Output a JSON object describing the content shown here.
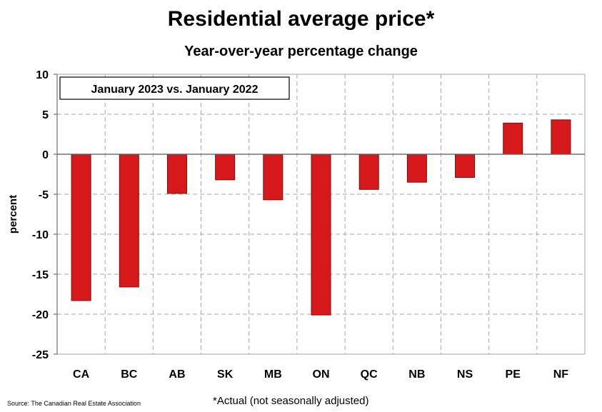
{
  "chart_data": {
    "type": "bar",
    "title": "Residential average price*",
    "subtitle": "Year-over-year percentage change",
    "annotation": "January 2023 vs. January 2022",
    "categories": [
      "CA",
      "BC",
      "AB",
      "SK",
      "MB",
      "ON",
      "QC",
      "NB",
      "NS",
      "PE",
      "NF"
    ],
    "series": [
      {
        "name": "Year-over-year percentage change",
        "values": [
          -18.3,
          -16.6,
          -4.9,
          -3.2,
          -5.7,
          -20.1,
          -4.4,
          -3.5,
          -2.9,
          3.9,
          4.3
        ]
      }
    ],
    "xlabel": "",
    "ylabel": "percent",
    "ylim": [
      -25,
      10
    ],
    "yticks": [
      10,
      5,
      0,
      -5,
      -10,
      -15,
      -20,
      -25
    ],
    "grid": true,
    "bar_color": "#d7191c",
    "bar_edge_color": "#7a0d0f"
  },
  "footer": {
    "source": "Source: The Canadian Real Estate Association",
    "note": "*Actual (not seasonally adjusted)"
  }
}
